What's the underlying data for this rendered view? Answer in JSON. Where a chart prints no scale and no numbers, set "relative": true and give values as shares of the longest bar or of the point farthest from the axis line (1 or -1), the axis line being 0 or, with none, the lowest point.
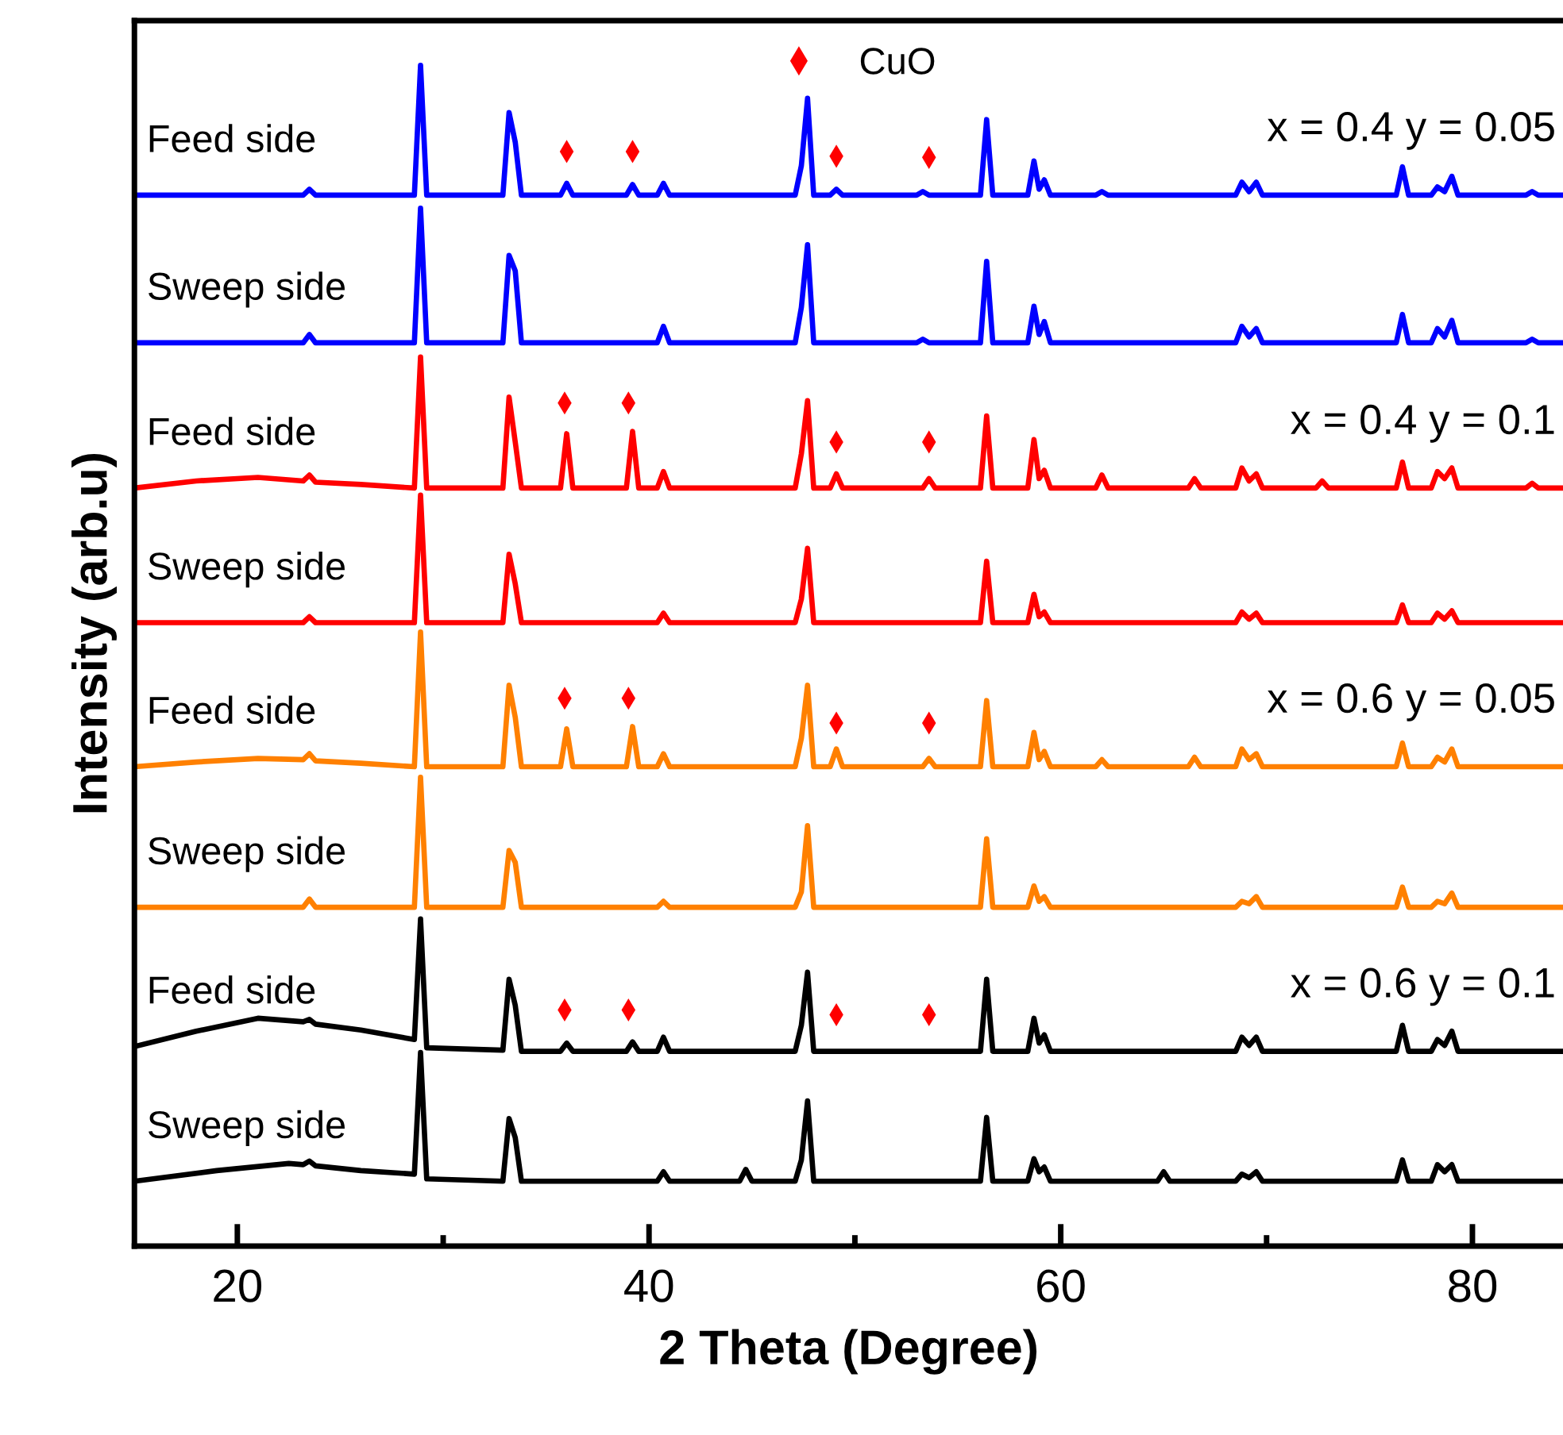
{
  "chart_data": {
    "type": "line",
    "relative": true,
    "xlabel": "2 Theta (Degree)",
    "ylabel": "Intensity (arb.u)",
    "xlim": [
      15,
      84.4
    ],
    "xticks": [
      20,
      {
        "value": 30,
        "label": null
      },
      40,
      {
        "value": 50,
        "label": null
      },
      60,
      {
        "value": 70,
        "label": null
      },
      80
    ],
    "legend": "top",
    "grid": false,
    "series": [
      {
        "name": "Feed side",
        "color": "#0000ff",
        "x": [
          15,
          23.2,
          23.5,
          23.8,
          28.6,
          28.9,
          29.2,
          32.9,
          33.2,
          33.5,
          33.8,
          35.7,
          36.0,
          36.3,
          38.9,
          39.2,
          39.5,
          40.4,
          40.7,
          41.0,
          47.1,
          47.4,
          47.7,
          48.0,
          48.8,
          49.1,
          49.4,
          53.0,
          53.3,
          53.6,
          56.1,
          56.4,
          56.7,
          58.4,
          58.7,
          58.95,
          59.2,
          59.5,
          61.7,
          62.0,
          62.3,
          68.5,
          68.8,
          69.15,
          69.5,
          69.8,
          76.3,
          76.6,
          76.9,
          78.0,
          78.3,
          78.65,
          79.0,
          79.3,
          82.6,
          82.9,
          83.2,
          84.4
        ],
        "values": [
          0.89,
          0.89,
          0.895,
          0.89,
          0.89,
          1.0,
          0.89,
          0.89,
          0.96,
          0.935,
          0.89,
          0.89,
          0.9,
          0.89,
          0.89,
          0.899,
          0.89,
          0.89,
          0.9,
          0.89,
          0.89,
          0.915,
          0.972,
          0.89,
          0.89,
          0.895,
          0.89,
          0.89,
          0.893,
          0.89,
          0.89,
          0.954,
          0.89,
          0.89,
          0.919,
          0.895,
          0.903,
          0.89,
          0.89,
          0.893,
          0.89,
          0.89,
          0.901,
          0.893,
          0.901,
          0.89,
          0.89,
          0.914,
          0.89,
          0.89,
          0.897,
          0.893,
          0.906,
          0.89,
          0.89,
          0.893,
          0.89,
          0.89
        ]
      },
      {
        "name": "Sweep side",
        "color": "#0000ff",
        "x": [
          15,
          23.2,
          23.5,
          23.8,
          28.6,
          28.9,
          29.2,
          32.9,
          33.2,
          33.5,
          33.8,
          40.4,
          40.7,
          41.0,
          47.1,
          47.4,
          47.7,
          48.0,
          53.0,
          53.3,
          53.6,
          56.1,
          56.4,
          56.7,
          58.4,
          58.7,
          58.95,
          59.2,
          59.5,
          68.5,
          68.8,
          69.15,
          69.5,
          69.8,
          76.3,
          76.6,
          76.9,
          78.0,
          78.3,
          78.65,
          79.0,
          79.3,
          82.6,
          82.9,
          83.2,
          84.4
        ],
        "values": [
          0.765,
          0.765,
          0.772,
          0.765,
          0.765,
          0.879,
          0.765,
          0.765,
          0.839,
          0.826,
          0.765,
          0.765,
          0.779,
          0.765,
          0.765,
          0.795,
          0.848,
          0.765,
          0.765,
          0.768,
          0.765,
          0.765,
          0.834,
          0.765,
          0.765,
          0.796,
          0.772,
          0.783,
          0.765,
          0.765,
          0.779,
          0.77,
          0.777,
          0.765,
          0.765,
          0.789,
          0.765,
          0.765,
          0.777,
          0.77,
          0.784,
          0.765,
          0.765,
          0.768,
          0.765,
          0.765
        ]
      },
      {
        "name": "Feed side",
        "color": "#ff0000",
        "x": [
          15,
          18,
          21,
          23.2,
          23.5,
          23.8,
          26,
          28.6,
          28.9,
          29.2,
          32.9,
          33.2,
          33.5,
          33.8,
          35.7,
          36.0,
          36.3,
          38.9,
          39.2,
          39.5,
          40.4,
          40.7,
          41.0,
          47.1,
          47.4,
          47.7,
          48.0,
          48.8,
          49.1,
          49.4,
          53.3,
          53.6,
          53.9,
          56.1,
          56.4,
          56.7,
          58.4,
          58.7,
          58.95,
          59.2,
          59.5,
          61.7,
          62.0,
          62.3,
          66.2,
          66.5,
          66.8,
          68.5,
          68.8,
          69.15,
          69.5,
          69.8,
          72.4,
          72.7,
          73.0,
          76.3,
          76.6,
          76.9,
          78.0,
          78.3,
          78.65,
          79.0,
          79.3,
          82.6,
          82.9,
          83.2,
          84.4
        ],
        "values": [
          0.642,
          0.648,
          0.651,
          0.648,
          0.653,
          0.647,
          0.645,
          0.642,
          0.753,
          0.642,
          0.642,
          0.719,
          0.681,
          0.642,
          0.642,
          0.688,
          0.642,
          0.642,
          0.69,
          0.642,
          0.642,
          0.656,
          0.642,
          0.642,
          0.671,
          0.716,
          0.642,
          0.642,
          0.654,
          0.642,
          0.642,
          0.65,
          0.642,
          0.642,
          0.703,
          0.642,
          0.642,
          0.683,
          0.65,
          0.657,
          0.642,
          0.642,
          0.653,
          0.642,
          0.642,
          0.65,
          0.642,
          0.642,
          0.659,
          0.648,
          0.654,
          0.642,
          0.642,
          0.648,
          0.642,
          0.642,
          0.664,
          0.642,
          0.642,
          0.656,
          0.65,
          0.659,
          0.642,
          0.642,
          0.646,
          0.642,
          0.642
        ]
      },
      {
        "name": "Sweep side",
        "color": "#ff0000",
        "x": [
          15,
          23.2,
          23.5,
          23.8,
          28.6,
          28.9,
          29.2,
          32.9,
          33.2,
          33.5,
          33.8,
          40.4,
          40.7,
          41.0,
          47.1,
          47.4,
          47.7,
          48.0,
          56.1,
          56.4,
          56.7,
          58.4,
          58.7,
          58.95,
          59.2,
          59.5,
          68.5,
          68.8,
          69.15,
          69.5,
          69.8,
          76.3,
          76.6,
          76.9,
          78.0,
          78.3,
          78.65,
          79.0,
          79.3,
          84.4
        ],
        "values": [
          0.528,
          0.528,
          0.533,
          0.528,
          0.528,
          0.636,
          0.528,
          0.528,
          0.586,
          0.561,
          0.528,
          0.528,
          0.536,
          0.528,
          0.528,
          0.548,
          0.591,
          0.528,
          0.528,
          0.58,
          0.528,
          0.528,
          0.552,
          0.533,
          0.537,
          0.528,
          0.528,
          0.537,
          0.531,
          0.536,
          0.528,
          0.528,
          0.543,
          0.528,
          0.528,
          0.536,
          0.531,
          0.538,
          0.528,
          0.528
        ]
      },
      {
        "name": "Feed side",
        "color": "#ff8000",
        "x": [
          15,
          18,
          21,
          23.2,
          23.5,
          23.8,
          26,
          28.6,
          28.9,
          29.2,
          32.9,
          33.2,
          33.5,
          33.8,
          35.7,
          36.0,
          36.3,
          38.9,
          39.2,
          39.5,
          40.4,
          40.7,
          41.0,
          47.1,
          47.4,
          47.7,
          48.0,
          48.8,
          49.1,
          49.4,
          53.3,
          53.6,
          53.9,
          56.1,
          56.4,
          56.7,
          58.4,
          58.7,
          58.95,
          59.2,
          59.5,
          61.7,
          62.0,
          62.3,
          66.2,
          66.5,
          66.8,
          68.5,
          68.8,
          69.15,
          69.5,
          69.8,
          76.3,
          76.6,
          76.9,
          78.0,
          78.3,
          78.65,
          79.0,
          79.3,
          84.4
        ],
        "values": [
          0.406,
          0.41,
          0.413,
          0.412,
          0.417,
          0.411,
          0.409,
          0.406,
          0.52,
          0.406,
          0.406,
          0.475,
          0.448,
          0.406,
          0.406,
          0.438,
          0.406,
          0.406,
          0.44,
          0.406,
          0.406,
          0.417,
          0.406,
          0.406,
          0.43,
          0.475,
          0.406,
          0.406,
          0.421,
          0.406,
          0.406,
          0.413,
          0.406,
          0.406,
          0.462,
          0.406,
          0.406,
          0.435,
          0.412,
          0.419,
          0.406,
          0.406,
          0.412,
          0.406,
          0.406,
          0.414,
          0.406,
          0.406,
          0.421,
          0.412,
          0.417,
          0.406,
          0.406,
          0.426,
          0.406,
          0.406,
          0.414,
          0.41,
          0.421,
          0.406,
          0.406
        ]
      },
      {
        "name": "Sweep side",
        "color": "#ff8000",
        "x": [
          15,
          23.2,
          23.5,
          23.8,
          28.6,
          28.9,
          29.2,
          32.9,
          33.2,
          33.5,
          33.8,
          40.4,
          40.7,
          41.0,
          47.1,
          47.4,
          47.7,
          48.0,
          56.1,
          56.4,
          56.7,
          58.4,
          58.7,
          58.95,
          59.2,
          59.5,
          68.5,
          68.8,
          69.15,
          69.5,
          69.8,
          76.3,
          76.6,
          76.9,
          78.0,
          78.3,
          78.65,
          79.0,
          79.3,
          84.4
        ],
        "values": [
          0.287,
          0.287,
          0.294,
          0.287,
          0.287,
          0.397,
          0.287,
          0.287,
          0.335,
          0.325,
          0.287,
          0.287,
          0.292,
          0.287,
          0.287,
          0.3,
          0.356,
          0.287,
          0.287,
          0.345,
          0.287,
          0.287,
          0.305,
          0.292,
          0.296,
          0.287,
          0.287,
          0.292,
          0.29,
          0.296,
          0.287,
          0.287,
          0.304,
          0.287,
          0.287,
          0.292,
          0.29,
          0.299,
          0.287,
          0.287
        ]
      },
      {
        "name": "Feed side",
        "color": "#000000",
        "x": [
          15,
          18,
          21,
          23.2,
          23.5,
          23.8,
          26,
          28.6,
          28.9,
          29.2,
          31,
          32.9,
          33.2,
          33.5,
          33.8,
          35.7,
          36.0,
          36.3,
          38.9,
          39.2,
          39.5,
          40.4,
          40.7,
          41.0,
          47.1,
          47.4,
          47.7,
          48.0,
          56.1,
          56.4,
          56.7,
          58.4,
          58.7,
          58.95,
          59.2,
          59.5,
          68.5,
          68.8,
          69.15,
          69.5,
          69.8,
          76.3,
          76.6,
          76.9,
          78.0,
          78.3,
          78.65,
          79.0,
          79.3,
          84.4
        ],
        "values": [
          0.169,
          0.182,
          0.193,
          0.19,
          0.192,
          0.188,
          0.183,
          0.175,
          0.277,
          0.168,
          0.167,
          0.166,
          0.226,
          0.204,
          0.165,
          0.165,
          0.172,
          0.165,
          0.165,
          0.173,
          0.165,
          0.165,
          0.177,
          0.165,
          0.165,
          0.187,
          0.232,
          0.165,
          0.165,
          0.226,
          0.165,
          0.165,
          0.193,
          0.172,
          0.179,
          0.165,
          0.165,
          0.177,
          0.17,
          0.177,
          0.165,
          0.165,
          0.187,
          0.165,
          0.165,
          0.175,
          0.17,
          0.182,
          0.165,
          0.165
        ]
      },
      {
        "name": "Sweep side",
        "color": "#000000",
        "x": [
          15,
          19,
          22.5,
          23.2,
          23.5,
          23.8,
          26,
          28.6,
          28.9,
          29.2,
          32.9,
          33.2,
          33.5,
          33.8,
          40.4,
          40.7,
          41.0,
          44.4,
          44.7,
          45.0,
          47.1,
          47.4,
          47.7,
          48.0,
          56.1,
          56.4,
          56.7,
          58.4,
          58.7,
          58.95,
          59.2,
          59.5,
          64.7,
          65.0,
          65.3,
          68.5,
          68.8,
          69.15,
          69.5,
          69.8,
          76.3,
          76.6,
          76.9,
          78.0,
          78.3,
          78.65,
          79.0,
          79.3,
          84.4
        ],
        "values": [
          0.055,
          0.064,
          0.07,
          0.069,
          0.072,
          0.068,
          0.064,
          0.061,
          0.164,
          0.057,
          0.055,
          0.108,
          0.092,
          0.055,
          0.055,
          0.063,
          0.055,
          0.055,
          0.065,
          0.055,
          0.055,
          0.073,
          0.123,
          0.055,
          0.055,
          0.109,
          0.055,
          0.055,
          0.074,
          0.063,
          0.067,
          0.055,
          0.055,
          0.063,
          0.055,
          0.055,
          0.061,
          0.058,
          0.063,
          0.055,
          0.055,
          0.073,
          0.055,
          0.055,
          0.069,
          0.063,
          0.069,
          0.055,
          0.055
        ]
      },
      {
        "name": "CuO",
        "type": "scatter",
        "marker": "diamond",
        "color": "#ff0000",
        "x": [
          36.0,
          39.2,
          49.1,
          53.6,
          35.9,
          39.0,
          49.1,
          53.6,
          35.9,
          39.0,
          49.1,
          53.6,
          35.9,
          39.0,
          49.1,
          53.6
        ],
        "values": [
          0.927,
          0.927,
          0.923,
          0.922,
          0.714,
          0.714,
          0.681,
          0.681,
          0.464,
          0.464,
          0.443,
          0.443,
          0.2,
          0.2,
          0.196,
          0.196
        ]
      }
    ],
    "annotations": [
      "x = 0.4 y = 0.05",
      "x = 0.4 y = 0.1",
      "x = 0.6 y = 0.05",
      "x = 0.6 y = 0.1"
    ]
  }
}
